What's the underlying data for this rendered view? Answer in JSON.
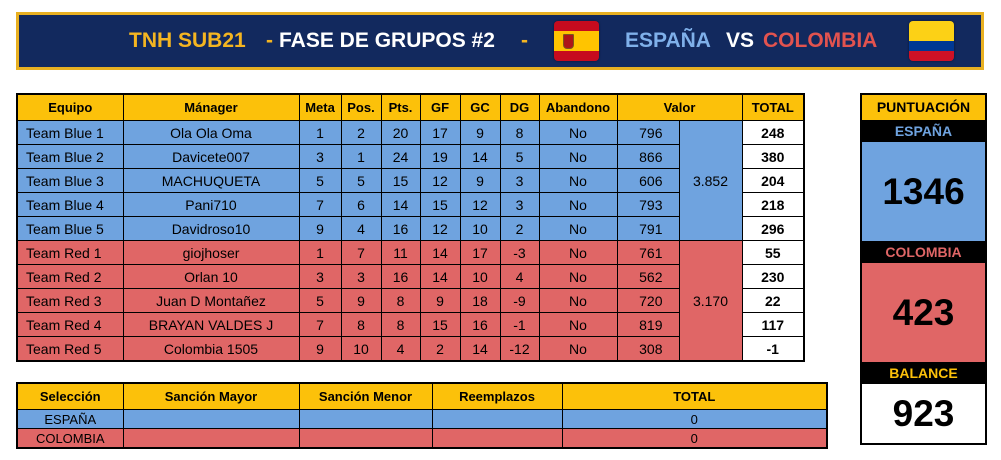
{
  "header": {
    "tournament": "TNH SUB21",
    "sep1": "-",
    "phase": "FASE DE GRUPOS #2",
    "sep2": "-",
    "team_a": "ESPAÑA",
    "vs": "VS",
    "team_b": "COLOMBIA",
    "flag_a_icon": "spain-flag-icon",
    "flag_b_icon": "colombia-flag-icon"
  },
  "results_table": {
    "columns": [
      "Equipo",
      "Mánager",
      "Meta",
      "Pos.",
      "Pts.",
      "GF",
      "GC",
      "DG",
      "Abandono",
      "Valor",
      "TOTAL"
    ],
    "rows": [
      {
        "team": "Team Blue 1",
        "manager": "Ola Ola Oma",
        "meta": "1",
        "pos": "2",
        "pts": "20",
        "gf": "17",
        "gc": "9",
        "dg": "8",
        "abandono": "No",
        "valor": "796",
        "total": "248"
      },
      {
        "team": "Team Blue 2",
        "manager": "Davicete007",
        "meta": "3",
        "pos": "1",
        "pts": "24",
        "gf": "19",
        "gc": "14",
        "dg": "5",
        "abandono": "No",
        "valor": "866",
        "total": "380"
      },
      {
        "team": "Team Blue 3",
        "manager": "MACHUQUETA",
        "meta": "5",
        "pos": "5",
        "pts": "15",
        "gf": "12",
        "gc": "9",
        "dg": "3",
        "abandono": "No",
        "valor": "606",
        "total": "204"
      },
      {
        "team": "Team Blue 4",
        "manager": "Pani710",
        "meta": "7",
        "pos": "6",
        "pts": "14",
        "gf": "15",
        "gc": "12",
        "dg": "3",
        "abandono": "No",
        "valor": "793",
        "total": "218"
      },
      {
        "team": "Team Blue 5",
        "manager": "Davidroso10",
        "meta": "9",
        "pos": "4",
        "pts": "16",
        "gf": "12",
        "gc": "10",
        "dg": "2",
        "abandono": "No",
        "valor": "791",
        "total": "296"
      },
      {
        "team": "Team Red 1",
        "manager": "giojhoser",
        "meta": "1",
        "pos": "7",
        "pts": "11",
        "gf": "14",
        "gc": "17",
        "dg": "-3",
        "abandono": "No",
        "valor": "761",
        "total": "55"
      },
      {
        "team": "Team Red 2",
        "manager": "Orlan 10",
        "meta": "3",
        "pos": "3",
        "pts": "16",
        "gf": "14",
        "gc": "10",
        "dg": "4",
        "abandono": "No",
        "valor": "562",
        "total": "230"
      },
      {
        "team": "Team Red 3",
        "manager": "Juan D Montañez",
        "meta": "5",
        "pos": "9",
        "pts": "8",
        "gf": "9",
        "gc": "18",
        "dg": "-9",
        "abandono": "No",
        "valor": "720",
        "total": "22"
      },
      {
        "team": "Team Red 4",
        "manager": "BRAYAN VALDES J",
        "meta": "7",
        "pos": "8",
        "pts": "8",
        "gf": "15",
        "gc": "16",
        "dg": "-1",
        "abandono": "No",
        "valor": "819",
        "total": "117"
      },
      {
        "team": "Team Red 5",
        "manager": "Colombia 1505",
        "meta": "9",
        "pos": "10",
        "pts": "4",
        "gf": "2",
        "gc": "14",
        "dg": "-12",
        "abandono": "No",
        "valor": "308",
        "total": "-1"
      }
    ],
    "blue_valor_sum": "3.852",
    "red_valor_sum": "3.170"
  },
  "sanctions_table": {
    "columns": [
      "Selección",
      "Sanción Mayor",
      "Sanción Menor",
      "Reemplazos",
      "TOTAL"
    ],
    "rows": [
      {
        "seleccion": "ESPAÑA",
        "mayor": "",
        "menor": "",
        "reemplazos": "",
        "total": "0"
      },
      {
        "seleccion": "COLOMBIA",
        "mayor": "",
        "menor": "",
        "reemplazos": "",
        "total": "0"
      }
    ]
  },
  "score_panel": {
    "title": "PUNTUACIÓN",
    "team_a": "ESPAÑA",
    "score_a": "1346",
    "team_b": "COLOMBIA",
    "score_b": "423",
    "balance_label": "BALANCE",
    "balance": "923"
  },
  "colors": {
    "banner_bg": "#12295e",
    "gold": "#f4b521",
    "blue_team": "#6fa3df",
    "red_team": "#e06666",
    "header_yellow": "#fcc10a"
  }
}
